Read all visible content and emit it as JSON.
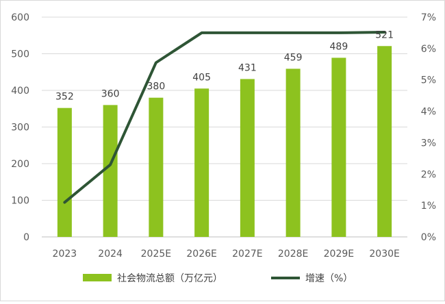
{
  "chart_data": {
    "type": "bar+line",
    "categories": [
      "2023",
      "2024",
      "2025E",
      "2026E",
      "2027E",
      "2028E",
      "2029E",
      "2030E"
    ],
    "series": [
      {
        "name": "社会物流总额（万亿元）",
        "type": "bar",
        "axis": "left",
        "color": "#8dc21f",
        "values": [
          352,
          360,
          380,
          405,
          431,
          459,
          489,
          521
        ],
        "data_labels": [
          "352",
          "360",
          "380",
          "405",
          "431",
          "459",
          "489",
          "521"
        ]
      },
      {
        "name": "增速（%）",
        "type": "line",
        "axis": "right",
        "color": "#2e5535",
        "values": [
          1.1,
          2.3,
          5.55,
          6.5,
          6.5,
          6.5,
          6.5,
          6.52
        ]
      }
    ],
    "y_left": {
      "min": 0,
      "max": 600,
      "step": 100,
      "tick_labels": [
        "0",
        "100",
        "200",
        "300",
        "400",
        "500",
        "600"
      ]
    },
    "y_right": {
      "min": 0,
      "max": 7,
      "step": 1,
      "tick_labels": [
        "0%",
        "1%",
        "2%",
        "3%",
        "4%",
        "5%",
        "6%",
        "7%"
      ]
    },
    "grid": true,
    "legend_position": "bottom"
  }
}
